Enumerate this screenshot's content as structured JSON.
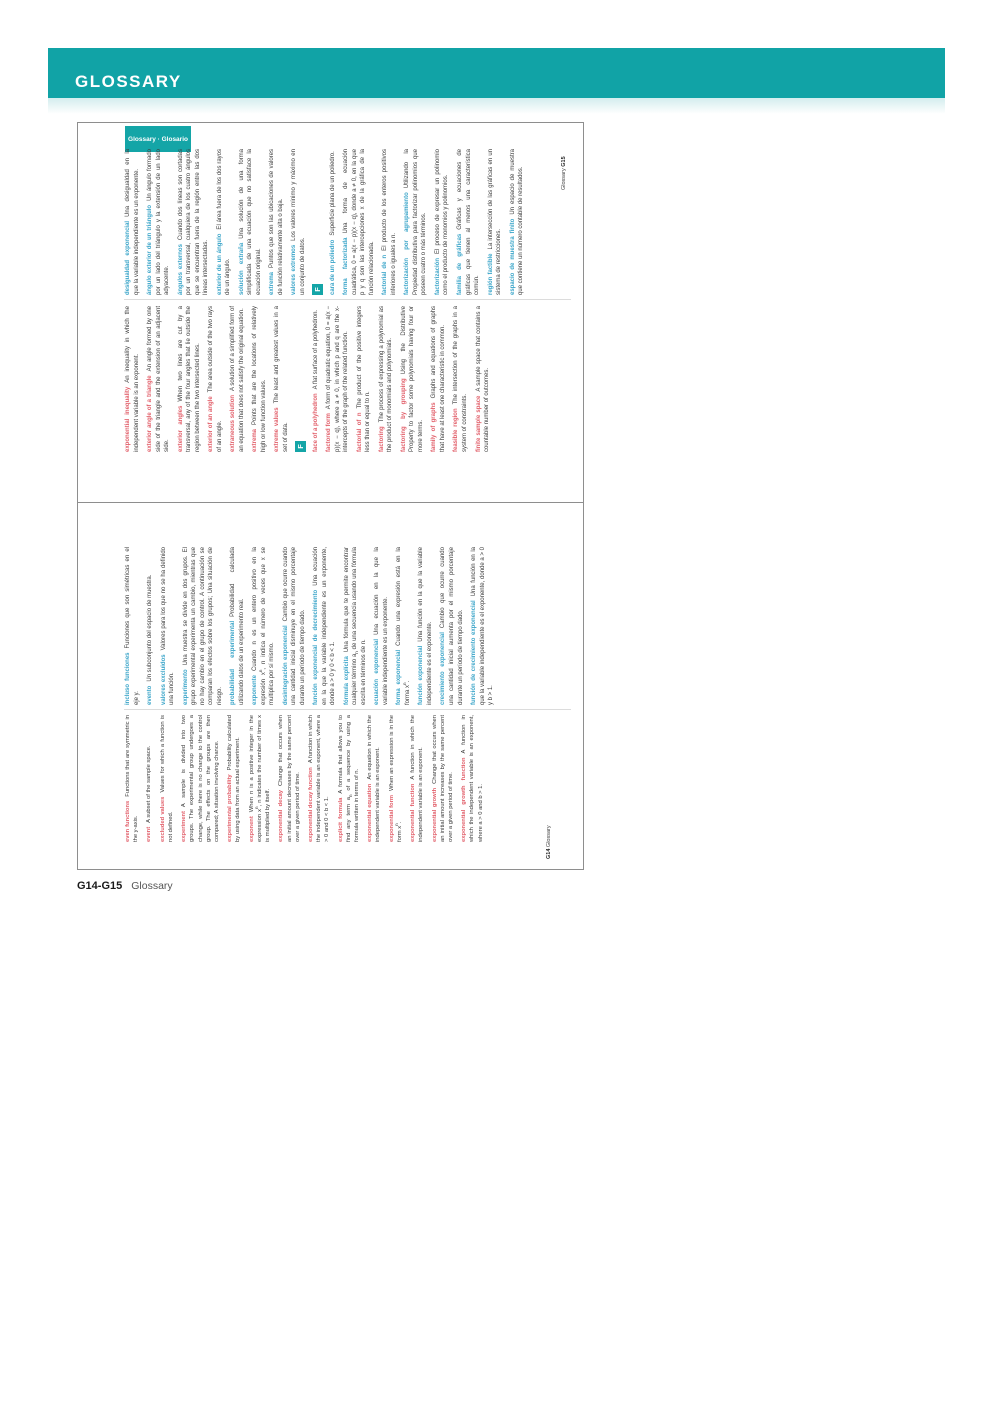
{
  "header": {
    "title": "GLOSSARY"
  },
  "figure": {
    "tab_label": "Glossary · Glosario",
    "caption": {
      "pages": "G14-G15",
      "label": "Glossary"
    },
    "colors": {
      "teal_band": "#11a3a6",
      "spanish_term": "#3ba5c9",
      "english_term": "#e2606b"
    },
    "pages": [
      {
        "name": "G15",
        "footer": {
          "label": "Glossary",
          "page_num": "G15"
        },
        "spanish": [
          {
            "term": "desigualdad exponencial",
            "def": "Una desigualdad en la que la variable independiente es un exponente."
          },
          {
            "term": "ángulo exterior de un triángulo",
            "def": "Un ángulo formado por un lado del triángulo y la extensión de un lado adyacente."
          },
          {
            "term": "ángulos externos",
            "def": "Cuando dos líneas son cortadas por un transversal, cualquiera de los cuatro ángulos que se encuentran fuera de la región entre las dos líneas intersectadas."
          },
          {
            "term": "exterior de un ángulo",
            "def": "El área fuera de los dos rayos de un ángulo."
          },
          {
            "term": "solución extraña",
            "def": "Una solución de una forma simplificada de una ecuación que no satisface la ecuación original."
          },
          {
            "term": "extrema",
            "def": "Puntos que son las ubicaciones de valores de función relativamente alta o baja."
          },
          {
            "term": "valores extremos",
            "def": "Los valores mínimo y máximo en un conjunto de datos."
          },
          {
            "badge": "F"
          },
          {
            "term": "cara de un poliedro",
            "def": "Superficie plana de un poliedro."
          },
          {
            "term": "forma factorizada",
            "def": "Una forma de ecuación cuadrática, 0 = a(x − p)(x − q), donde a ≠ 0, en la que p y q son las intercepciones x de la gráfica de la función relacionada."
          },
          {
            "term": "factorial de n",
            "def": "El producto de los enteros positivos inferiores o iguales a n."
          },
          {
            "term": "factorización por agrupamiento",
            "def": "Utilizando la Propiedad distributiva para factorizar polinomios que poseen cuatro o más términos."
          },
          {
            "term": "factorización",
            "def": "El proceso de expresar un polinomio como el producto de monomios y polinomios."
          },
          {
            "term": "familia de gráficas",
            "def": "Gráficas y ecuaciones de gráficas que tienen al menos una característica común."
          },
          {
            "term": "región factible",
            "def": "La intersección de las gráficas en un sistema de restricciones."
          },
          {
            "term": "espacio de muestra finito",
            "def": "Un espacio de muestra que contiene un número contable de resultados."
          }
        ],
        "english": [
          {
            "term": "exponential inequality",
            "def": "An inequality in which the independent variable is an exponent."
          },
          {
            "term": "exterior angle of a triangle",
            "def": "An angle formed by one side of the triangle and the extension of an adjacent side."
          },
          {
            "term": "exterior angles",
            "def": "When two lines are cut by a transversal, any of the four angles that lie outside the region between the two intersected lines."
          },
          {
            "term": "exterior of an angle",
            "def": "The area outside of the two rays of an angle."
          },
          {
            "term": "extraneous solution",
            "def": "A solution of a simplified form of an equation that does not satisfy the original equation."
          },
          {
            "term": "extrema",
            "def": "Points that are the locations of relatively high or low function values."
          },
          {
            "term": "extreme values",
            "def": "The least and greatest values in a set of data."
          },
          {
            "badge": "F"
          },
          {
            "term": "face of a polyhedron",
            "def": "A flat surface of a polyhedron."
          },
          {
            "term": "factored form",
            "def": "A form of quadratic equation, 0 = a(x − p)(x − q), where a ≠ 0, in which p and q are the x-intercepts of the graph of the related function."
          },
          {
            "term": "factorial of n",
            "def": "The product of the positive integers less than or equal to n."
          },
          {
            "term": "factoring",
            "def": "The process of expressing a polynomial as the product of monomials and polynomials."
          },
          {
            "term": "factoring by grouping",
            "def": "Using the Distributive Property to factor some polynomials having four or more terms."
          },
          {
            "term": "family of graphs",
            "def": "Graphs and equations of graphs that have at least one characteristic in common."
          },
          {
            "term": "feasible region",
            "def": "The intersection of the graphs in a system of constraints."
          },
          {
            "term": "finite sample space",
            "def": "A sample space that contains a countable number of outcomes."
          }
        ]
      },
      {
        "name": "G14",
        "footer": {
          "page_num": "G14",
          "label": "Glossary"
        },
        "spanish": [
          {
            "term": "incluso funciones",
            "def": "Funciones que son simétricas en el eje y."
          },
          {
            "term": "evento",
            "def": "Un subconjunto del espacio de muestra."
          },
          {
            "term": "valores excluidos",
            "def": "Valores para los que no se ha definido una función."
          },
          {
            "term": "experimento",
            "def": "Una muestra se divide en dos grupos. El grupo experimental experimenta un cambio, mientras que no hay cambio en el grupo de control. A continuación se comparan los efectos sobre los grupos; Una situación de riesgo."
          },
          {
            "term": "probabilidad experimental",
            "def": "Probabilidad calculada utilizando datos de un experimento real."
          },
          {
            "term": "exponente",
            "def": "Cuando n es un entero positivo en la expresión x^{n}, n indica el número de veces que x se multiplica por sí mismo."
          },
          {
            "term": "desintegración exponencial",
            "def": "Cambio que ocurre cuando una cantidad inicial disminuye en el mismo porcentaje durante un período de tiempo dado."
          },
          {
            "term": "función exponencial de decrecimiento",
            "def": "Una ecuación en la que la variable independiente es un exponente, donde a > 0 y 0 < b < 1."
          },
          {
            "term": "fórmula explícita",
            "def": "Una fórmula que te permite encontrar cualquier término a_{n} de una secuencia usando una fórmula escrita en términos de n."
          },
          {
            "term": "ecuación exponencial",
            "def": "Una ecuación en la que la variable independiente es un exponente."
          },
          {
            "term": "forma exponencial",
            "def": "Cuando una expresión está en la forma x^{n}."
          },
          {
            "term": "función exponencial",
            "def": "Una función en la que la variable independiente es el exponente."
          },
          {
            "term": "crecimiento exponencial",
            "def": "Cambio que ocurre cuando una cantidad inicial aumenta por el mismo porcentaje durante un período de tiempo dado."
          },
          {
            "term": "función de crecimiento exponencial",
            "def": "Una función en la que la variable independiente es el exponente, donde a > 0 y b > 1."
          }
        ],
        "english": [
          {
            "term": "even functions",
            "def": "Functions that are symmetric in the y-axis."
          },
          {
            "term": "event",
            "def": "A subset of the sample space."
          },
          {
            "term": "excluded values",
            "def": "Values for which a function is not defined."
          },
          {
            "term": "experiment",
            "def": "A sample is divided into two groups. The experimental group undergoes a change, while there is no change to the control group. The effects on the groups are then compared; A situation involving chance."
          },
          {
            "term": "experimental probability",
            "def": "Probability calculated by using data from an actual experiment."
          },
          {
            "term": "exponent",
            "def": "When n is a positive integer in the expression x^{n}, n indicates the number of times x is multiplied by itself."
          },
          {
            "term": "exponential decay",
            "def": "Change that occurs when an initial amount decreases by the same percent over a given period of time."
          },
          {
            "term": "exponential decay function",
            "def": "A function in which the independent variable is an exponent, where a > 0 and 0 < b < 1."
          },
          {
            "term": "explicit formula",
            "def": "A formula that allows you to find any term a_{n} of a sequence by using a formula written in terms of n."
          },
          {
            "term": "exponential equation",
            "def": "An equation in which the independent variable is an exponent."
          },
          {
            "term": "exponential form",
            "def": "When an expression is in the form x^{n}."
          },
          {
            "term": "exponential function",
            "def": "A function in which the independent variable is an exponent."
          },
          {
            "term": "exponential growth",
            "def": "Change that occurs when an initial amount increases by the same percent over a given period of time."
          },
          {
            "term": "exponential growth function",
            "def": "A function in which the independent variable is an exponent, where a > 0 and b > 1."
          }
        ]
      }
    ]
  }
}
